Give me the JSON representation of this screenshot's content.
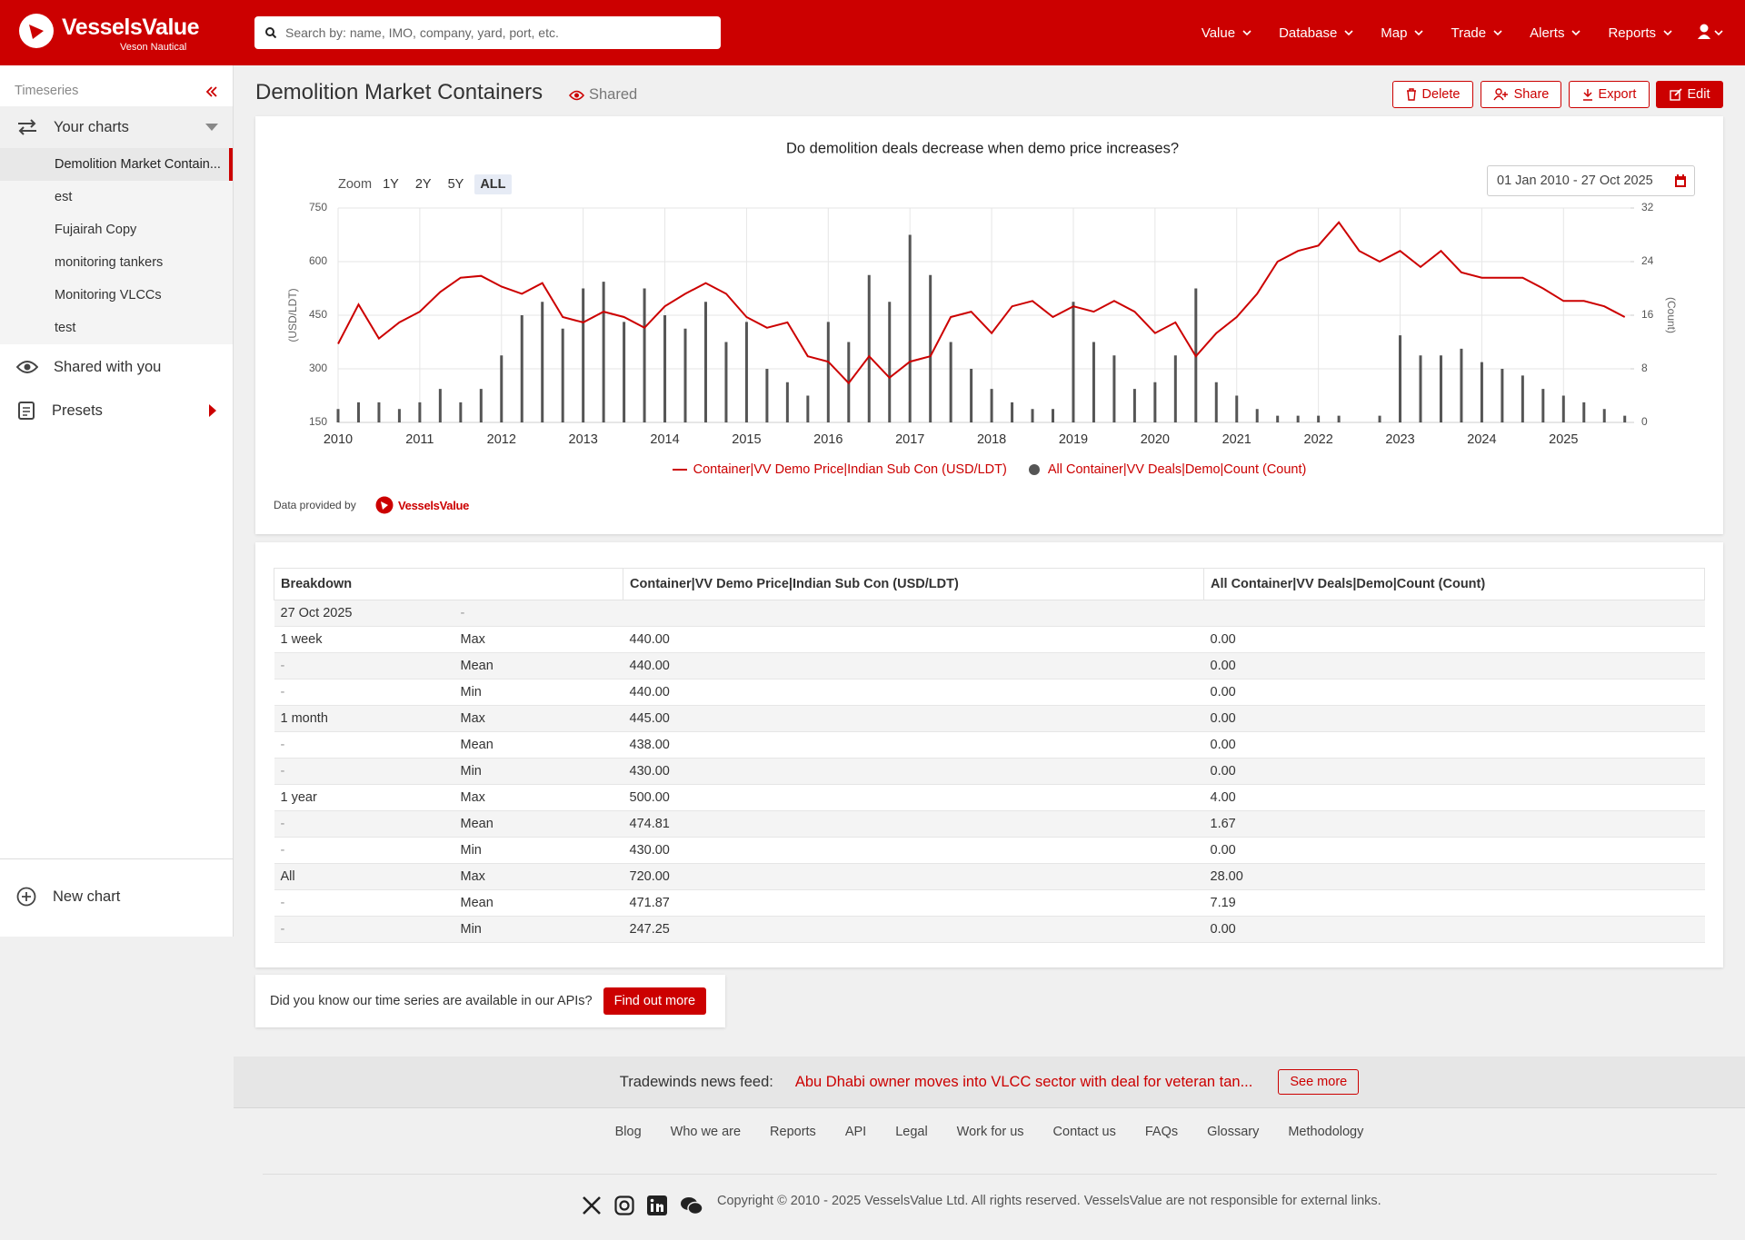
{
  "header": {
    "logo": "VesselsValue",
    "logo_sub": "Veson Nautical",
    "search_placeholder": "Search by: name, IMO, company, yard, port, etc.",
    "nav": [
      "Value",
      "Database",
      "Map",
      "Trade",
      "Alerts",
      "Reports"
    ]
  },
  "sidebar": {
    "section": "Timeseries",
    "your_charts": "Your charts",
    "charts": [
      "Demolition Market Contain...",
      "est",
      "Fujairah Copy",
      "monitoring tankers",
      "Monitoring VLCCs",
      "test"
    ],
    "shared": "Shared with you",
    "presets": "Presets",
    "new_chart": "New chart"
  },
  "page": {
    "title": "Demolition Market Containers",
    "shared": "Shared",
    "buttons": [
      "Delete",
      "Share",
      "Export",
      "Edit"
    ]
  },
  "chart_data": {
    "type": "combo",
    "title": "Do demolition deals decrease when demo price increases?",
    "zoom_label": "Zoom",
    "zoom_options": [
      "1Y",
      "2Y",
      "5Y",
      "ALL"
    ],
    "date_range": "01 Jan 2010 - 27 Oct 2025",
    "ylabel": "(USD/LDT)",
    "y2label": "(Count)",
    "xlim": [
      2010,
      2025.82
    ],
    "xticks": [
      2010,
      2011,
      2012,
      2013,
      2014,
      2015,
      2016,
      2017,
      2018,
      2019,
      2020,
      2021,
      2022,
      2023,
      2024,
      2025
    ],
    "ylim": [
      150,
      750
    ],
    "yticks": [
      150,
      300,
      450,
      600,
      750
    ],
    "y2lim": [
      0,
      32
    ],
    "y2ticks": [
      0,
      8,
      16,
      24,
      32
    ],
    "grid": true,
    "series": [
      {
        "name": "Container|VV Demo Price|Indian Sub Con (USD/LDT)",
        "type": "line",
        "color": "#cc0000",
        "x": [
          2010,
          2010.25,
          2010.5,
          2010.75,
          2011,
          2011.25,
          2011.5,
          2011.75,
          2012,
          2012.25,
          2012.5,
          2012.75,
          2013,
          2013.25,
          2013.5,
          2013.75,
          2014,
          2014.25,
          2014.5,
          2014.75,
          2015,
          2015.25,
          2015.5,
          2015.75,
          2016,
          2016.25,
          2016.5,
          2016.75,
          2017,
          2017.25,
          2017.5,
          2017.75,
          2018,
          2018.25,
          2018.5,
          2018.75,
          2019,
          2019.25,
          2019.5,
          2019.75,
          2020,
          2020.25,
          2020.5,
          2020.75,
          2021,
          2021.25,
          2021.5,
          2021.75,
          2022,
          2022.25,
          2022.5,
          2022.75,
          2023,
          2023.25,
          2023.5,
          2023.75,
          2024,
          2024.25,
          2024.5,
          2024.75,
          2025,
          2025.25,
          2025.5,
          2025.75
        ],
        "values": [
          370,
          480,
          385,
          430,
          460,
          515,
          555,
          560,
          530,
          510,
          540,
          445,
          430,
          460,
          445,
          415,
          475,
          510,
          540,
          510,
          445,
          415,
          430,
          335,
          320,
          260,
          335,
          275,
          320,
          335,
          445,
          460,
          400,
          475,
          490,
          445,
          475,
          460,
          490,
          460,
          400,
          430,
          335,
          400,
          445,
          510,
          600,
          630,
          645,
          710,
          630,
          600,
          630,
          585,
          630,
          570,
          555,
          555,
          555,
          525,
          490,
          490,
          475,
          445
        ]
      },
      {
        "name": "All Container|VV Deals|Demo|Count (Count)",
        "type": "bar",
        "axis": "y2",
        "color": "#555555",
        "x": [
          2010,
          2010.25,
          2010.5,
          2010.75,
          2011,
          2011.25,
          2011.5,
          2011.75,
          2012,
          2012.25,
          2012.5,
          2012.75,
          2013,
          2013.25,
          2013.5,
          2013.75,
          2014,
          2014.25,
          2014.5,
          2014.75,
          2015,
          2015.25,
          2015.5,
          2015.75,
          2016,
          2016.25,
          2016.5,
          2016.75,
          2017,
          2017.25,
          2017.5,
          2017.75,
          2018,
          2018.25,
          2018.5,
          2018.75,
          2019,
          2019.25,
          2019.5,
          2019.75,
          2020,
          2020.25,
          2020.5,
          2020.75,
          2021,
          2021.25,
          2021.5,
          2021.75,
          2022,
          2022.25,
          2022.5,
          2022.75,
          2023,
          2023.25,
          2023.5,
          2023.75,
          2024,
          2024.25,
          2024.5,
          2024.75,
          2025,
          2025.25,
          2025.5,
          2025.75
        ],
        "values": [
          2,
          3,
          3,
          2,
          3,
          5,
          3,
          5,
          10,
          16,
          18,
          14,
          20,
          21,
          15,
          20,
          16,
          14,
          18,
          12,
          15,
          8,
          6,
          4,
          15,
          12,
          22,
          18,
          28,
          22,
          12,
          8,
          5,
          3,
          2,
          2,
          18,
          12,
          10,
          5,
          6,
          10,
          20,
          6,
          4,
          2,
          1,
          1,
          1,
          1,
          0,
          1,
          13,
          10,
          10,
          11,
          9,
          8,
          7,
          5,
          4,
          3,
          2,
          1
        ]
      }
    ],
    "source_label": "Data provided by",
    "source": "VesselsValue"
  },
  "table": {
    "headers": [
      "Breakdown",
      "Container|VV Demo Price|Indian Sub Con (USD/LDT)",
      "All Container|VV Deals|Demo|Count (Count)"
    ],
    "rows": [
      [
        "27 Oct 2025",
        "-"
      ],
      [
        "1 week",
        "Max",
        "440.00",
        "0.00"
      ],
      [
        "-",
        "Mean",
        "440.00",
        "0.00"
      ],
      [
        "-",
        "Min",
        "440.00",
        "0.00"
      ],
      [
        "1 month",
        "Max",
        "445.00",
        "0.00"
      ],
      [
        "-",
        "Mean",
        "438.00",
        "0.00"
      ],
      [
        "-",
        "Min",
        "430.00",
        "0.00"
      ],
      [
        "1 year",
        "Max",
        "500.00",
        "4.00"
      ],
      [
        "-",
        "Mean",
        "474.81",
        "1.67"
      ],
      [
        "-",
        "Min",
        "430.00",
        "0.00"
      ],
      [
        "All",
        "Max",
        "720.00",
        "28.00"
      ],
      [
        "-",
        "Mean",
        "471.87",
        "7.19"
      ],
      [
        "-",
        "Min",
        "247.25",
        "0.00"
      ]
    ]
  },
  "banner": {
    "text": "Did you know our time series are available in our APIs?",
    "button": "Find out more"
  },
  "news": {
    "label": "Tradewinds news feed:",
    "headline": "Abu Dhabi owner moves into VLCC sector with deal for veteran tan...",
    "button": "See more"
  },
  "footer": {
    "links": [
      "Blog",
      "Who we are",
      "Reports",
      "API",
      "Legal",
      "Work for us",
      "Contact us",
      "FAQs",
      "Glossary",
      "Methodology"
    ],
    "copyright": "Copyright © 2010 - 2025 VesselsValue Ltd. All rights reserved. VesselsValue are not responsible for external links."
  }
}
